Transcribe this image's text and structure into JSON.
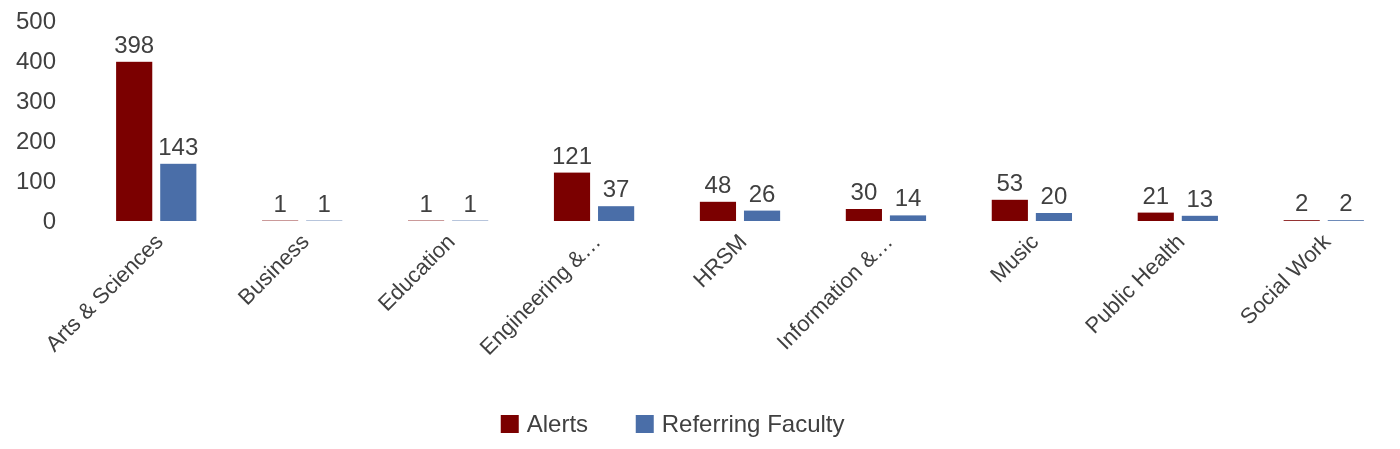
{
  "chart_data": {
    "type": "bar",
    "categories": [
      "Arts & Sciences",
      "Business",
      "Education",
      "Engineering &…",
      "HRSM",
      "Information &…",
      "Music",
      "Public Health",
      "Social Work"
    ],
    "series": [
      {
        "name": "Alerts",
        "color": "#7b0000",
        "values": [
          398,
          1,
          1,
          121,
          48,
          30,
          53,
          21,
          2
        ]
      },
      {
        "name": "Referring Faculty",
        "color": "#4a6ea8",
        "values": [
          143,
          1,
          1,
          37,
          26,
          14,
          20,
          13,
          2
        ]
      }
    ],
    "ylim": [
      0,
      500
    ],
    "yticks": [
      0,
      100,
      200,
      300,
      400,
      500
    ],
    "grid": false,
    "legend": "bottom",
    "data_labels": true
  }
}
